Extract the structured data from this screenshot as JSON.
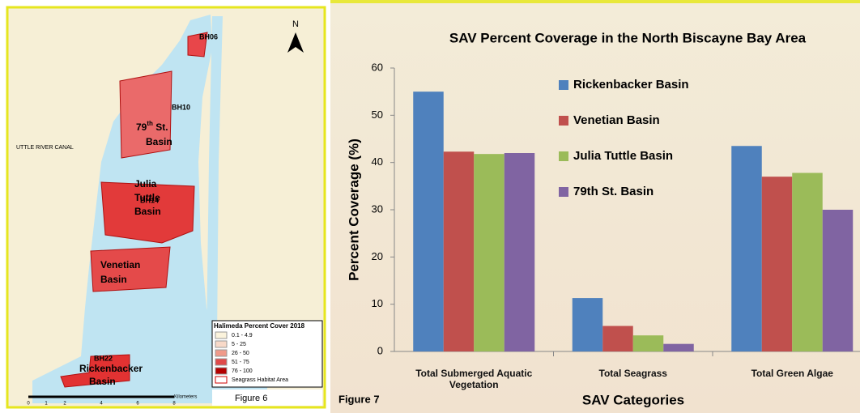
{
  "chart_data": {
    "type": "bar",
    "title": "SAV Percent Coverage in the North Biscayne Bay Area",
    "x_label": "SAV Categories",
    "y_label": "Percent Coverage (%)",
    "figure": "Figure 7",
    "categories": [
      "Total Submerged Aquatic Vegetation",
      "Total Seagrass",
      "Total Green Algae"
    ],
    "series": [
      {
        "name": "Rickenbacker Basin",
        "color": "#4f81bd",
        "values": [
          55,
          11.3,
          43.5
        ]
      },
      {
        "name": "Venetian Basin",
        "color": "#c0504d",
        "values": [
          42.3,
          5.4,
          37
        ]
      },
      {
        "name": "Julia Tuttle Basin",
        "color": "#9bbb59",
        "values": [
          41.8,
          3.4,
          37.8
        ]
      },
      {
        "name": "79th St. Basin",
        "color": "#8064a2",
        "values": [
          42,
          1.6,
          30
        ]
      }
    ],
    "ylim": [
      0,
      60
    ],
    "yticks": [
      0,
      10,
      20,
      30,
      40,
      50,
      60
    ],
    "legend": "upper center"
  },
  "map": {
    "figure": "Figure 6",
    "north": "N",
    "canal": "UTTLE RIVER CANAL",
    "stations": [
      "BH06",
      "BH10",
      "BH14",
      "BH22"
    ],
    "basin_79": [
      "79",
      "th",
      " St.",
      "Basin"
    ],
    "julia": [
      "Julia",
      "Tuttle",
      "Basin"
    ],
    "venetian": [
      "Venetian",
      "Basin"
    ],
    "rickenbacker": [
      "Rickenbacker",
      "Basin"
    ],
    "legend_title": "Halimeda Percent Cover 2018",
    "legend": [
      "0.1 - 4.9",
      "5 - 25",
      "26 - 50",
      "51 - 75",
      "76 - 100",
      "Seagrass Habitat Area"
    ],
    "scale_unit": "Kilometers",
    "scale": [
      "0",
      "1",
      "2",
      "4",
      "6",
      "8"
    ]
  }
}
